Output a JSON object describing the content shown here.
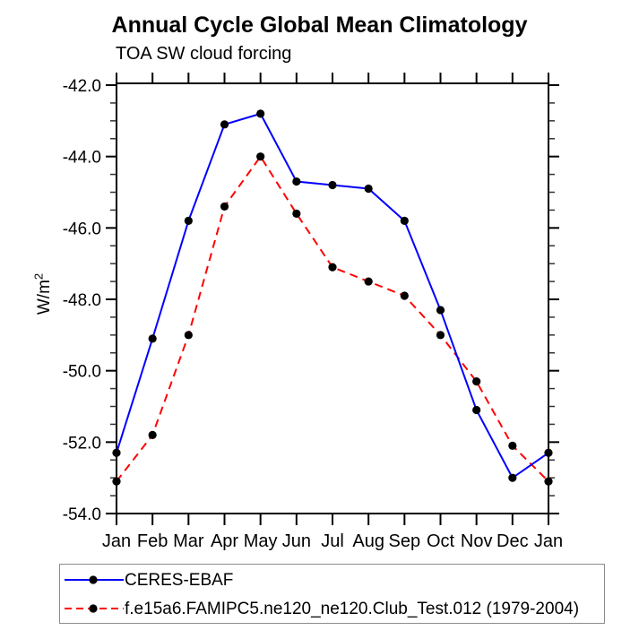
{
  "page": {
    "background": "#ffffff"
  },
  "chart_data": {
    "type": "line",
    "title": "Annual Cycle Global Mean Climatology",
    "subtitle": "TOA SW cloud forcing",
    "xlabel": "",
    "ylabel_base": "W/m",
    "ylabel_superscript": "2",
    "categories": [
      "Jan",
      "Feb",
      "Mar",
      "Apr",
      "May",
      "Jun",
      "Jul",
      "Aug",
      "Sep",
      "Oct",
      "Nov",
      "Dec",
      "Jan"
    ],
    "ylim": [
      -54.0,
      -42.0
    ],
    "ytick_values": [
      -42,
      -44,
      -46,
      -48,
      -50,
      -52,
      -54
    ],
    "ytick_labels": [
      "-42.0",
      "-44.0",
      "-46.0",
      "-48.0",
      "-50.0",
      "-52.0",
      "-54.0"
    ],
    "y_minor_tick_step": 0.5,
    "grid": "off",
    "legend_position": "bottom-left",
    "axis_color": "#000000",
    "series": [
      {
        "name": "CERES-EBAF",
        "color": "#0000ff",
        "line_style": "solid",
        "marker": "filled-circle",
        "marker_color": "#000000",
        "values": [
          -52.3,
          -49.1,
          -45.8,
          -43.1,
          -42.8,
          -44.7,
          -44.8,
          -44.9,
          -45.8,
          -48.3,
          -51.1,
          -53.0,
          -52.3
        ]
      },
      {
        "name": "f.e15a6.FAMIPC5.ne120_ne120.Club_Test.012 (1979-2004)",
        "color": "#ff0000",
        "line_style": "dashed",
        "marker": "filled-circle",
        "marker_color": "#000000",
        "values": [
          -53.1,
          -51.8,
          -49.0,
          -45.4,
          -44.0,
          -45.6,
          -47.1,
          -47.5,
          -47.9,
          -49.0,
          -50.3,
          -52.1,
          -53.1
        ]
      }
    ]
  }
}
